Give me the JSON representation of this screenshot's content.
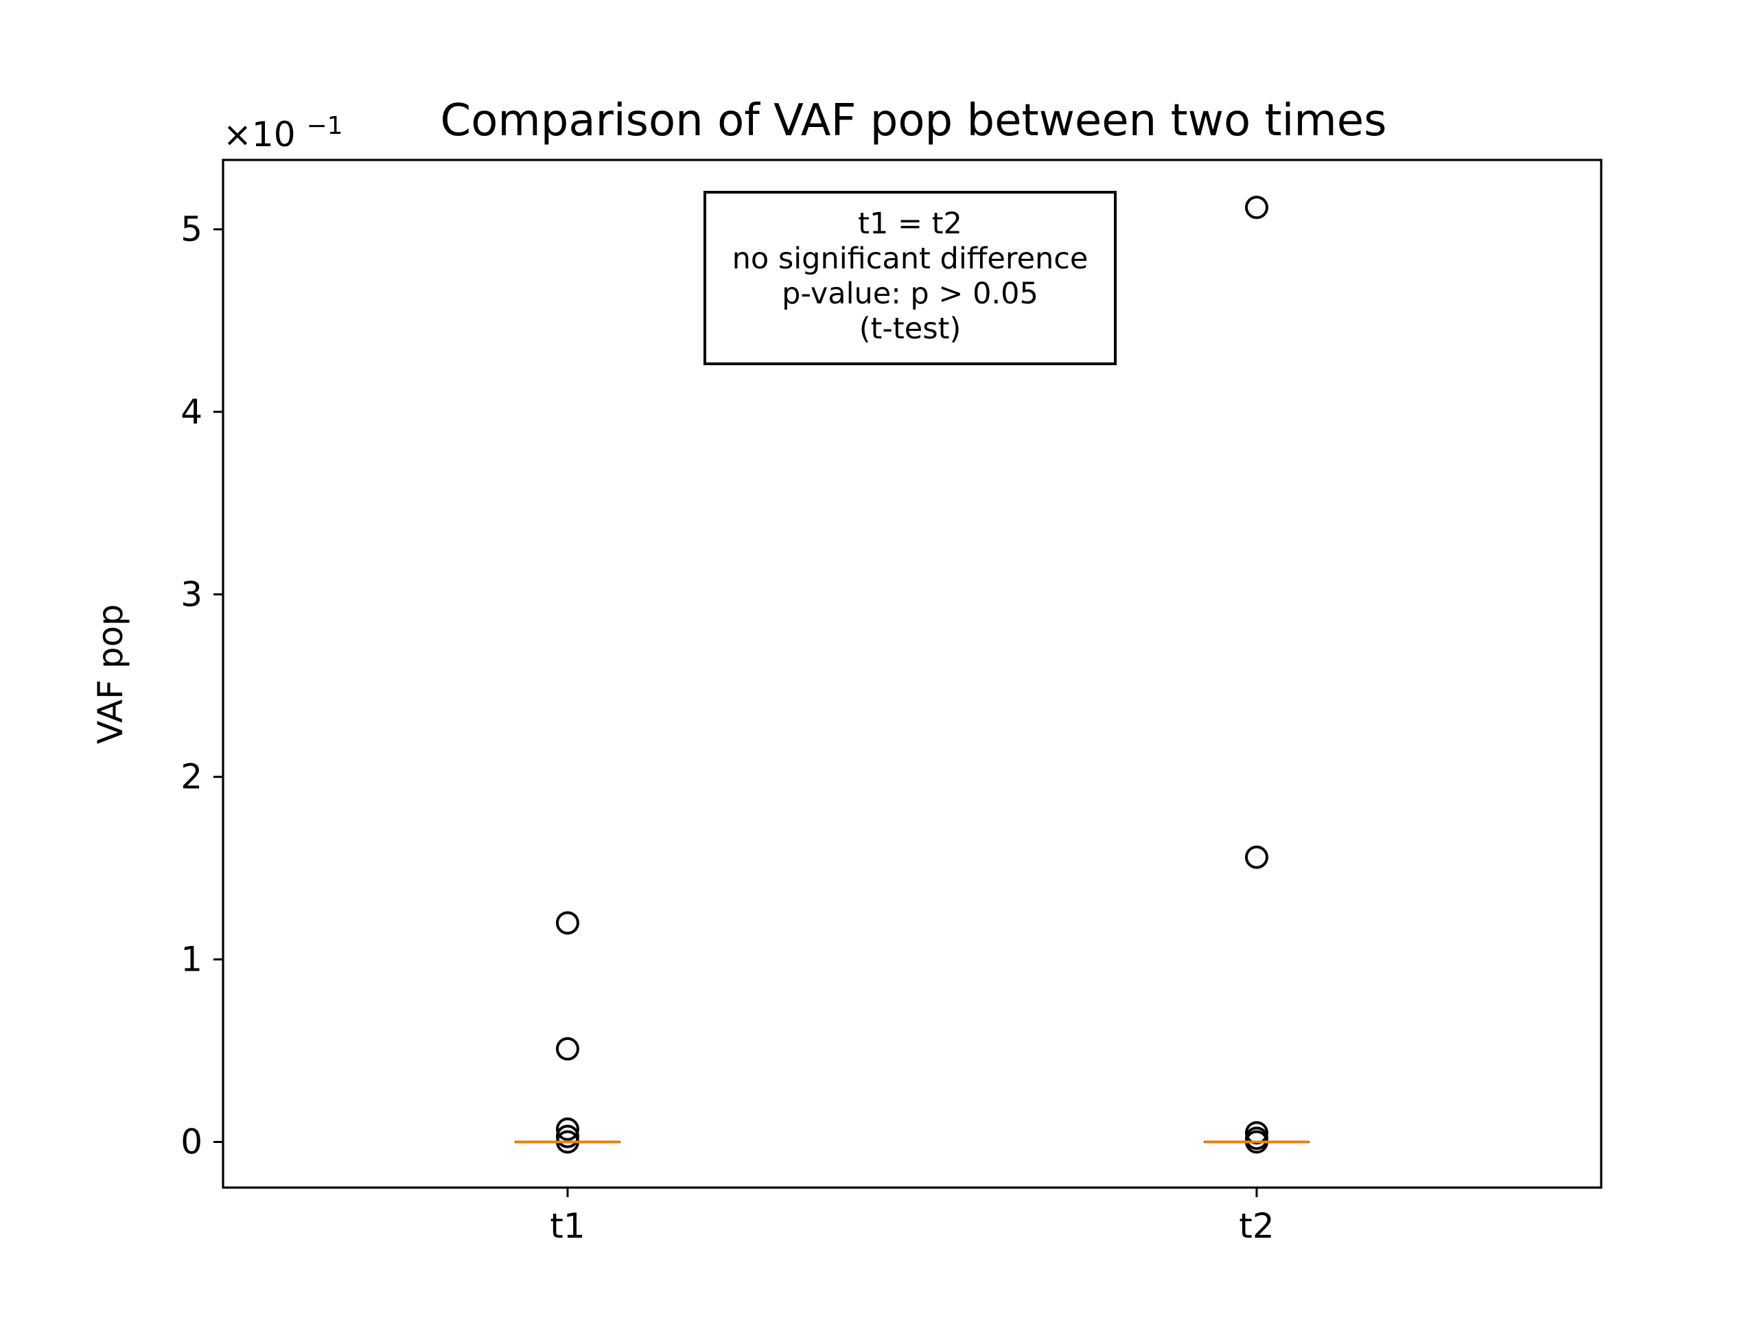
{
  "chart_data": {
    "type": "boxplot",
    "title": "Comparison of VAF pop between two times",
    "xlabel": "",
    "ylabel": "VAF pop",
    "y_offset_text": "×10",
    "y_offset_exp": "−1",
    "y_scale_factor": 0.1,
    "categories": [
      "t1",
      "t2"
    ],
    "yticks": [
      0,
      1,
      2,
      3,
      4,
      5
    ],
    "ytick_labels": [
      "0",
      "1",
      "2",
      "3",
      "4",
      "5"
    ],
    "ylim": [
      -0.25,
      5.38
    ],
    "grid": false,
    "boxes": [
      {
        "label": "t1",
        "median": 0.0,
        "q1": 0.0,
        "q3": 0.0,
        "whisker_low": 0.0,
        "whisker_high": 0.0,
        "outliers": [
          1.2,
          0.51,
          0.07,
          0.03,
          0.0
        ]
      },
      {
        "label": "t2",
        "median": 0.0,
        "q1": 0.0,
        "q3": 0.0,
        "whisker_low": 0.0,
        "whisker_high": 0.0,
        "outliers": [
          5.12,
          1.56,
          0.05,
          0.02,
          0.0
        ]
      }
    ],
    "median_color": "#f07f0e",
    "annotation": {
      "lines": [
        "t1 = t2",
        "no significant difference",
        "p-value: p > 0.05",
        "(t-test)"
      ],
      "placement": "top-center"
    }
  }
}
